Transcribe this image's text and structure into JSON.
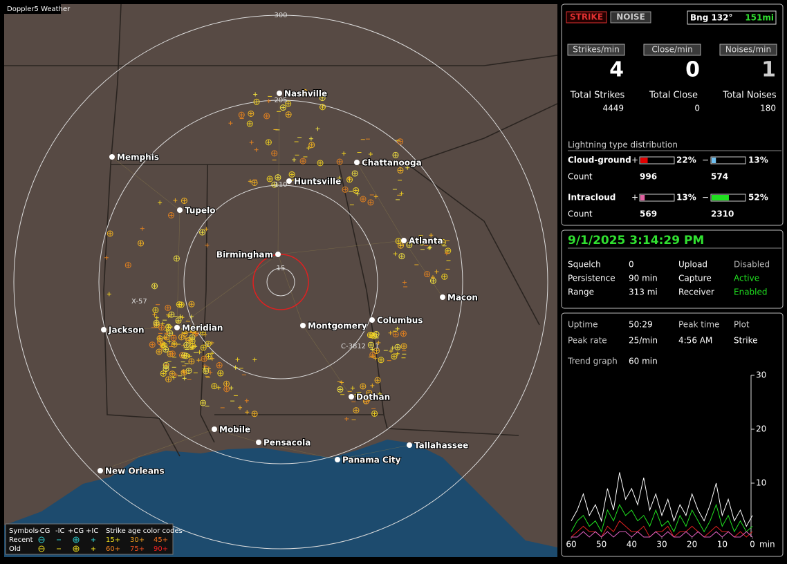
{
  "map": {
    "title": "Doppler5 Weather",
    "rings": [
      "300",
      "205",
      "110",
      "15"
    ],
    "cities": [
      "Nashville",
      "Memphis",
      "Chattanooga",
      "Huntsville",
      "Tupelo",
      "Atlanta",
      "Birmingham",
      "Macon",
      "Columbus",
      "Montgomery",
      "Jackson",
      "Meridian",
      "Dothan",
      "Mobile",
      "Pensacola",
      "Tallahassee",
      "Panama City",
      "New Orleans"
    ],
    "markers": [
      "X-57",
      "C-3812",
      "1"
    ]
  },
  "legend": {
    "symbols_title": "Symbols",
    "types": [
      "-CG",
      "-IC",
      "+CG",
      "+IC"
    ],
    "age_title": "Strike age color codes",
    "rows": [
      "Recent",
      "Old"
    ],
    "recent_codes": [
      "15+",
      "30+",
      "45+"
    ],
    "old_codes": [
      "60+",
      "75+",
      "90+"
    ]
  },
  "header": {
    "strike": "STRIKE",
    "noise": "NOISE",
    "bearing": "Bng 132°",
    "distance": "151mi"
  },
  "rates": [
    {
      "label": "Strikes/min",
      "value": 4,
      "total_label": "Total Strikes",
      "total": 4449
    },
    {
      "label": "Close/min",
      "value": 0,
      "total_label": "Total Close",
      "total": 0
    },
    {
      "label": "Noises/min",
      "value": 1,
      "total_label": "Total Noises",
      "total": 180
    }
  ],
  "distribution": {
    "title": "Lightning type distribution",
    "count_label": "Count",
    "plus_sign": "+",
    "minus_sign": "−",
    "rows": [
      {
        "name": "Cloud-ground",
        "plus": {
          "value": 22,
          "label": "22%"
        },
        "minus": {
          "value": 13,
          "label": "13%"
        },
        "plus_count": 996,
        "minus_count": 574
      },
      {
        "name": "Intracloud",
        "plus": {
          "value": 13,
          "label": "13%"
        },
        "minus": {
          "value": 52,
          "label": "52%"
        },
        "plus_count": 569,
        "minus_count": 2310
      }
    ]
  },
  "status": {
    "datetime": "9/1/2025 3:14:29 PM",
    "items": [
      {
        "label": "Squelch",
        "value": 0,
        "color": "#ffffff"
      },
      {
        "label": "Upload",
        "value": "Disabled",
        "color": "#bbbbbb"
      },
      {
        "label": "Persistence",
        "value": "90 min",
        "color": "#ffffff"
      },
      {
        "label": "Capture",
        "value": "Active",
        "color": "#20e020"
      },
      {
        "label": "Range",
        "value": "313 mi",
        "color": "#ffffff"
      },
      {
        "label": "Receiver",
        "value": "Enabled",
        "color": "#20e020"
      }
    ]
  },
  "stats": [
    {
      "label": "Uptime",
      "value": "50:29"
    },
    {
      "label": "Peak time",
      "value": "4:56 AM"
    },
    {
      "label": "Plot",
      "value": "Strike"
    },
    {
      "label": "Peak rate",
      "value": "25/min"
    },
    {
      "label": "Trend graph",
      "value": "60 min"
    }
  ],
  "chart_data": {
    "type": "line",
    "x": [
      60,
      58,
      56,
      54,
      52,
      50,
      48,
      46,
      44,
      42,
      40,
      38,
      36,
      34,
      32,
      30,
      28,
      26,
      24,
      22,
      20,
      18,
      16,
      14,
      12,
      10,
      8,
      6,
      4,
      2,
      0
    ],
    "xlim": [
      60,
      0
    ],
    "ylim": [
      0,
      30
    ],
    "xticks": [
      60,
      50,
      40,
      30,
      20,
      10,
      0
    ],
    "yticks": [
      10,
      20,
      30
    ],
    "xlabel": "min",
    "series": [
      {
        "color": "#ffffff",
        "values": [
          3,
          5,
          8,
          4,
          6,
          3,
          9,
          5,
          12,
          7,
          9,
          6,
          11,
          5,
          8,
          4,
          7,
          3,
          6,
          4,
          8,
          5,
          3,
          6,
          10,
          4,
          7,
          3,
          5,
          2,
          4
        ]
      },
      {
        "color": "#20e020",
        "values": [
          1,
          3,
          4,
          2,
          3,
          1,
          5,
          3,
          6,
          4,
          5,
          3,
          4,
          2,
          5,
          2,
          3,
          1,
          4,
          2,
          5,
          3,
          1,
          3,
          6,
          2,
          4,
          1,
          3,
          1,
          2
        ]
      },
      {
        "color": "#e02020",
        "values": [
          0,
          1,
          2,
          1,
          1,
          0,
          2,
          1,
          3,
          2,
          1,
          1,
          2,
          0,
          1,
          1,
          2,
          0,
          1,
          1,
          2,
          1,
          0,
          1,
          2,
          1,
          1,
          0,
          1,
          0,
          1
        ]
      },
      {
        "color": "#e060c0",
        "values": [
          0,
          0,
          1,
          0,
          1,
          0,
          1,
          0,
          1,
          1,
          0,
          1,
          0,
          0,
          1,
          0,
          1,
          0,
          0,
          1,
          0,
          1,
          0,
          0,
          1,
          0,
          1,
          0,
          0,
          1,
          0
        ]
      }
    ]
  }
}
